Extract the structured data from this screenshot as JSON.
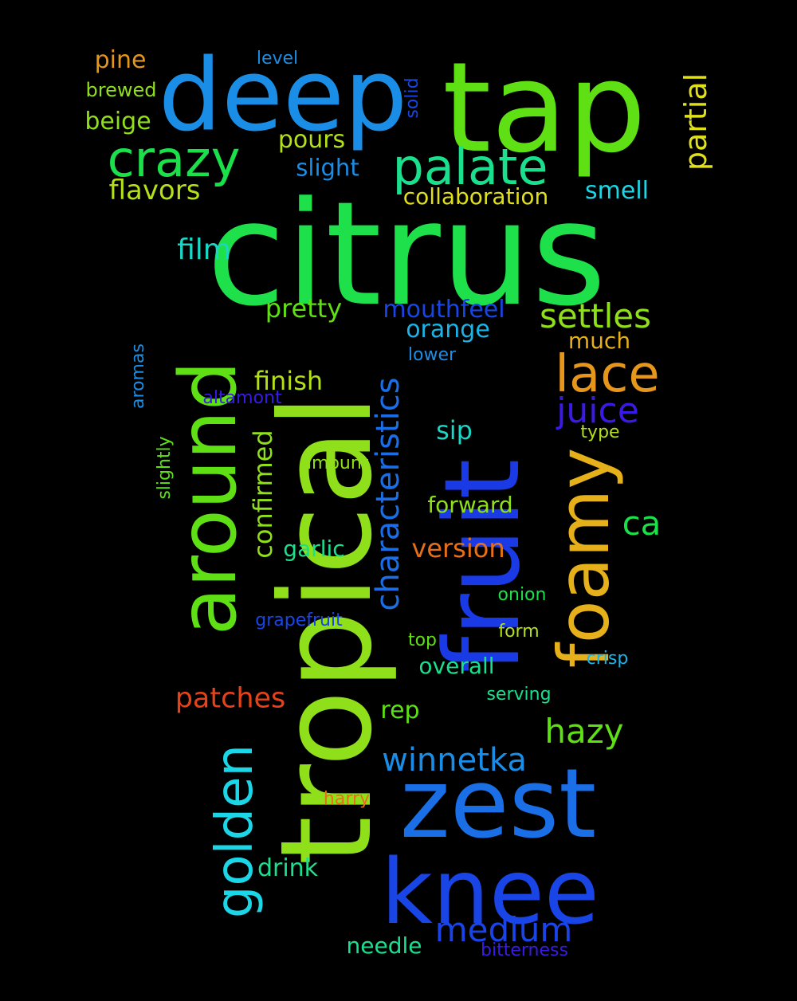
{
  "words": [
    {
      "text": "citrus",
      "color": "#1de04a",
      "vertical": false
    },
    {
      "text": "tropical",
      "color": "#8fe01a",
      "vertical": true
    },
    {
      "text": "fruit",
      "color": "#1a3ae6",
      "vertical": true
    },
    {
      "text": "tap",
      "color": "#5ee014",
      "vertical": false
    },
    {
      "text": "deep",
      "color": "#1a8ee6",
      "vertical": false
    },
    {
      "text": "zest",
      "color": "#1a6ee6",
      "vertical": false
    },
    {
      "text": "knee",
      "color": "#1a45e6",
      "vertical": false
    },
    {
      "text": "around",
      "color": "#5ee014",
      "vertical": true
    },
    {
      "text": "foamy",
      "color": "#e6b01a",
      "vertical": true
    },
    {
      "text": "palate",
      "color": "#1ae08e",
      "vertical": false
    },
    {
      "text": "crazy",
      "color": "#1ae04a",
      "vertical": false
    },
    {
      "text": "golden",
      "color": "#1ad6e6",
      "vertical": true
    },
    {
      "text": "lace",
      "color": "#e6961a",
      "vertical": false
    },
    {
      "text": "characteristics",
      "color": "#1a6ee6",
      "vertical": true
    },
    {
      "text": "settles",
      "color": "#8fe01a",
      "vertical": false
    },
    {
      "text": "juice",
      "color": "#3a1ae6",
      "vertical": false
    },
    {
      "text": "medium",
      "color": "#1a45e6",
      "vertical": false
    },
    {
      "text": "hazy",
      "color": "#5ee014",
      "vertical": false
    },
    {
      "text": "winnetka",
      "color": "#1a8ee6",
      "vertical": false
    },
    {
      "text": "partial",
      "color": "#e0e01a",
      "vertical": true
    },
    {
      "text": "confirmed",
      "color": "#8fe01a",
      "vertical": true
    },
    {
      "text": "patches",
      "color": "#e6421a",
      "vertical": false
    },
    {
      "text": "film",
      "color": "#1ad6c4",
      "vertical": false
    },
    {
      "text": "flavors",
      "color": "#b4e01a",
      "vertical": false
    },
    {
      "text": "pretty",
      "color": "#5ee014",
      "vertical": false
    },
    {
      "text": "mouthfeel",
      "color": "#1a45e6",
      "vertical": false
    },
    {
      "text": "orange",
      "color": "#1ab4e6",
      "vertical": false
    },
    {
      "text": "finish",
      "color": "#b4e01a",
      "vertical": false
    },
    {
      "text": "ca",
      "color": "#1ae04a",
      "vertical": false
    },
    {
      "text": "version",
      "color": "#e6701a",
      "vertical": false
    },
    {
      "text": "smell",
      "color": "#1ad6e6",
      "vertical": false
    },
    {
      "text": "pours",
      "color": "#b4e01a",
      "vertical": false
    },
    {
      "text": "slight",
      "color": "#1a8ee6",
      "vertical": false
    },
    {
      "text": "beige",
      "color": "#8fe01a",
      "vertical": false
    },
    {
      "text": "pine",
      "color": "#e6961a",
      "vertical": false
    },
    {
      "text": "collaboration",
      "color": "#e0e01a",
      "vertical": false
    },
    {
      "text": "much",
      "color": "#e6b01a",
      "vertical": false
    },
    {
      "text": "sip",
      "color": "#1ad6c4",
      "vertical": false
    },
    {
      "text": "forward",
      "color": "#8fe01a",
      "vertical": false
    },
    {
      "text": "garlic",
      "color": "#1ae08e",
      "vertical": false
    },
    {
      "text": "drink",
      "color": "#1ae08e",
      "vertical": false
    },
    {
      "text": "rep",
      "color": "#5ee014",
      "vertical": false
    },
    {
      "text": "overall",
      "color": "#1ae08e",
      "vertical": false
    },
    {
      "text": "needle",
      "color": "#1ae08e",
      "vertical": false
    },
    {
      "text": "brewed",
      "color": "#8fe01a",
      "vertical": false
    },
    {
      "text": "level",
      "color": "#1a8ee6",
      "vertical": false
    },
    {
      "text": "solid",
      "color": "#1a45e6",
      "vertical": true
    },
    {
      "text": "lower",
      "color": "#1a8ee6",
      "vertical": false
    },
    {
      "text": "altamont",
      "color": "#3a1ae6",
      "vertical": false
    },
    {
      "text": "aromas",
      "color": "#1a8ee6",
      "vertical": true
    },
    {
      "text": "slightly",
      "color": "#5ee014",
      "vertical": true
    },
    {
      "text": "amount",
      "color": "#8fe01a",
      "vertical": false
    },
    {
      "text": "type",
      "color": "#b4e01a",
      "vertical": false
    },
    {
      "text": "onion",
      "color": "#1ae04a",
      "vertical": false
    },
    {
      "text": "grapefruit",
      "color": "#1a45e6",
      "vertical": false
    },
    {
      "text": "top",
      "color": "#5ee014",
      "vertical": false
    },
    {
      "text": "form",
      "color": "#b4e01a",
      "vertical": false
    },
    {
      "text": "crisp",
      "color": "#1ab4e6",
      "vertical": false
    },
    {
      "text": "serving",
      "color": "#1ae08e",
      "vertical": false
    },
    {
      "text": "harry",
      "color": "#e6701a",
      "vertical": false
    },
    {
      "text": "bitterness",
      "color": "#3a1ae6",
      "vertical": false
    }
  ]
}
